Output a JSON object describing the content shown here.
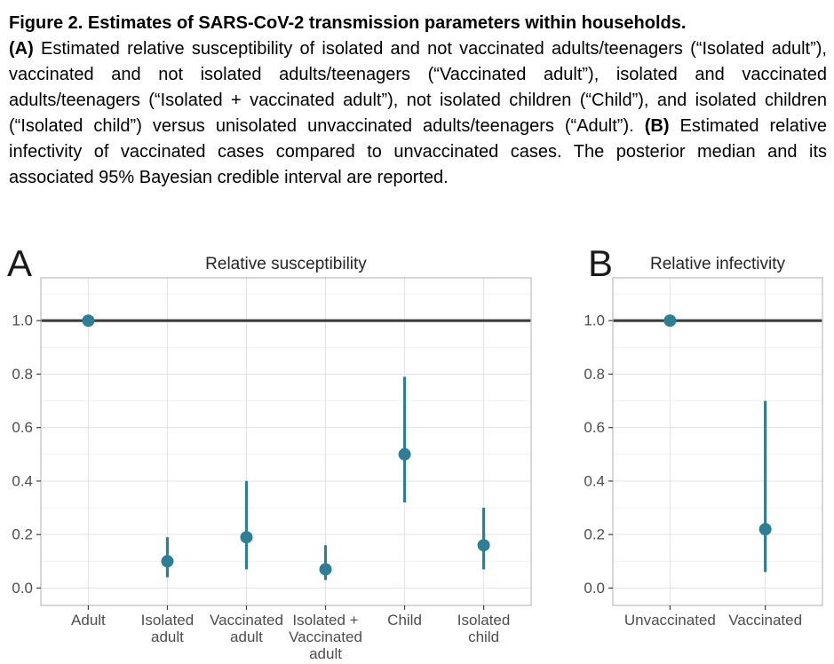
{
  "caption": {
    "title": "Figure 2. Estimates of SARS-CoV-2 transmission parameters within households.",
    "a_label": "(A)",
    "a_text": "Estimated relative susceptibility of isolated and not vaccinated adults/teenagers (“Isolated adult”), vaccinated and not isolated adults/teenagers (“Vaccinated adult”), isolated and vaccinated adults/teenagers (“Isolated + vaccinated adult”), not isolated children (“Child”), and isolated children (“Isolated child”) versus unisolated unvaccinated adults/teenagers (“Adult”).",
    "b_label": "(B)",
    "b_text": "Estimated relative infectivity of vaccinated cases compared to unvaccinated cases. The posterior median and its associated 95% Bayesian credible interval are reported."
  },
  "chart_data": [
    {
      "panel_label": "A",
      "type": "scatter",
      "error_bars": true,
      "title": "Relative susceptibility",
      "xlabel": "",
      "ylabel": "",
      "categories": [
        [
          "Adult"
        ],
        [
          "Isolated",
          "adult"
        ],
        [
          "Vaccinated",
          "adult"
        ],
        [
          "Isolated +",
          "Vaccinated",
          "adult"
        ],
        [
          "Child"
        ],
        [
          "Isolated",
          "child"
        ]
      ],
      "points": [
        {
          "category": "Adult",
          "median": 1.0,
          "ci_low": 1.0,
          "ci_high": 1.0,
          "reference": true
        },
        {
          "category": "Isolated adult",
          "median": 0.1,
          "ci_low": 0.04,
          "ci_high": 0.19
        },
        {
          "category": "Vaccinated adult",
          "median": 0.19,
          "ci_low": 0.07,
          "ci_high": 0.4
        },
        {
          "category": "Isolated + Vaccinated adult",
          "median": 0.07,
          "ci_low": 0.03,
          "ci_high": 0.16
        },
        {
          "category": "Child",
          "median": 0.5,
          "ci_low": 0.32,
          "ci_high": 0.79
        },
        {
          "category": "Isolated child",
          "median": 0.16,
          "ci_low": 0.07,
          "ci_high": 0.3
        }
      ],
      "yticks": [
        0.0,
        0.2,
        0.4,
        0.6,
        0.8,
        1.0
      ],
      "ylim": [
        -0.065,
        1.16
      ],
      "reference_line_y": 1.0,
      "grid": true,
      "legend": null
    },
    {
      "panel_label": "B",
      "type": "scatter",
      "error_bars": true,
      "title": "Relative infectivity",
      "xlabel": "",
      "ylabel": "",
      "categories": [
        [
          "Unvaccinated"
        ],
        [
          "Vaccinated"
        ]
      ],
      "points": [
        {
          "category": "Unvaccinated",
          "median": 1.0,
          "ci_low": 1.0,
          "ci_high": 1.0,
          "reference": true
        },
        {
          "category": "Vaccinated",
          "median": 0.22,
          "ci_low": 0.06,
          "ci_high": 0.7
        }
      ],
      "yticks": [
        0.0,
        0.2,
        0.4,
        0.6,
        0.8,
        1.0
      ],
      "ylim": [
        -0.065,
        1.16
      ],
      "reference_line_y": 1.0,
      "grid": true,
      "legend": null
    }
  ],
  "style": {
    "point_color": "#2e7f96",
    "reference_line_color": "#3d3d3d",
    "grid_major_color": "#e3e3e3",
    "grid_minor_color": "#f1f1f1",
    "panel_border_color": "#c6c6c6",
    "tick_mark_color": "#404040",
    "axis_text_color": "#4d4d4d",
    "title_color": "#262626",
    "panel_letter_color": "#1a1a1a"
  }
}
